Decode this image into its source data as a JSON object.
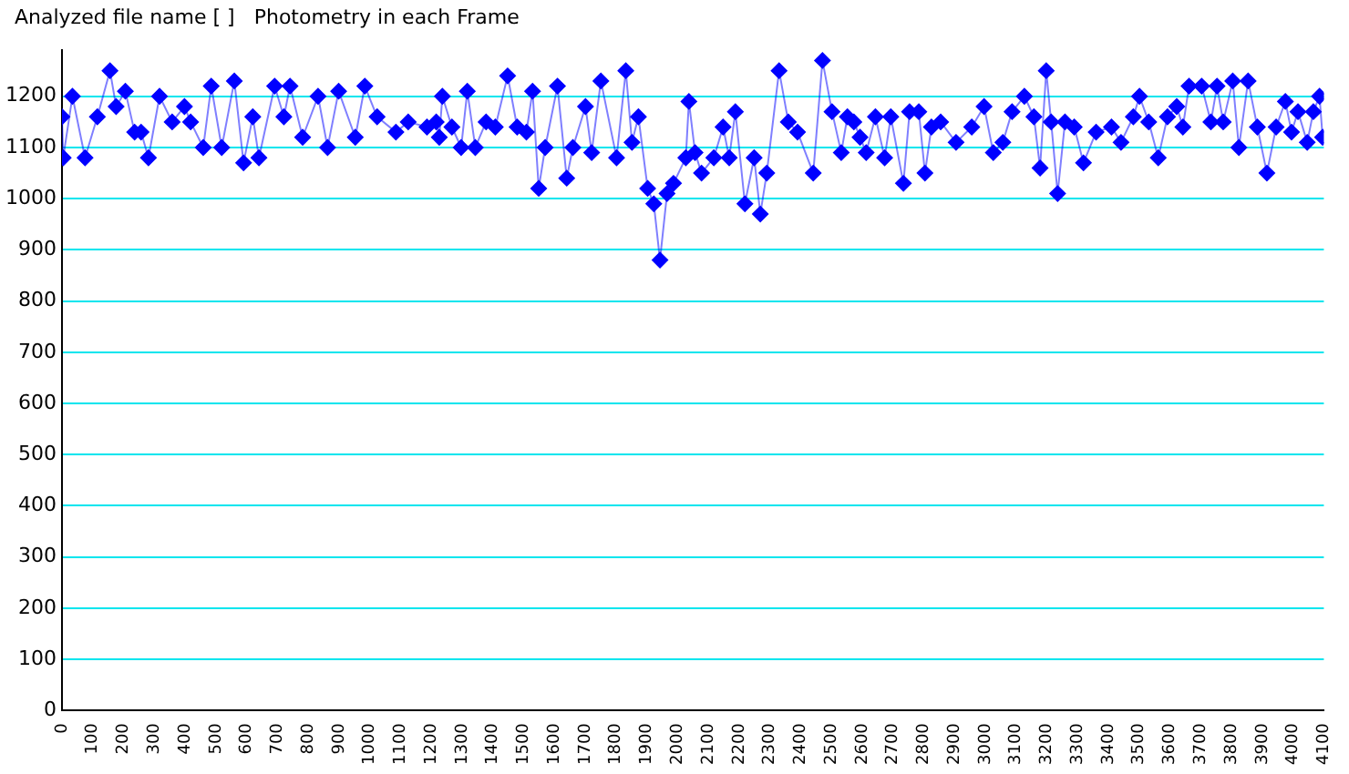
{
  "chart_data": {
    "type": "line",
    "title": "Analyzed file name [ ]   Photometry in each Frame",
    "xlim": [
      0,
      4100
    ],
    "xticks": [
      0,
      100,
      200,
      300,
      400,
      500,
      600,
      700,
      800,
      900,
      1000,
      1100,
      1200,
      1300,
      1400,
      1500,
      1600,
      1700,
      1800,
      1900,
      2000,
      2100,
      2200,
      2300,
      2400,
      2500,
      2600,
      2700,
      2800,
      2900,
      3000,
      3100,
      3200,
      3300,
      3400,
      3500,
      3600,
      3700,
      3800,
      3900,
      4000,
      4100
    ],
    "ylim": [
      0,
      1290
    ],
    "yticks": [
      0,
      100,
      200,
      300,
      400,
      500,
      600,
      700,
      800,
      900,
      1000,
      1100,
      1200
    ],
    "grid": "y",
    "legend": false,
    "marker": "diamond",
    "line_style": "solid",
    "series": [
      {
        "color": "#0000ff",
        "x": [
          0,
          4,
          34,
          75,
          115,
          156,
          176,
          206,
          236,
          257,
          281,
          317,
          358,
          398,
          418,
          459,
          485,
          519,
          560,
          590,
          620,
          640,
          691,
          721,
          741,
          782,
          832,
          863,
          899,
          953,
          984,
          1024,
          1085,
          1125,
          1186,
          1216,
          1226,
          1236,
          1267,
          1297,
          1317,
          1343,
          1378,
          1408,
          1448,
          1479,
          1509,
          1529,
          1549,
          1570,
          1610,
          1640,
          1660,
          1701,
          1721,
          1751,
          1802,
          1832,
          1852,
          1873,
          1903,
          1923,
          1943,
          1966,
          1987,
          2027,
          2037,
          2057,
          2078,
          2118,
          2148,
          2168,
          2188,
          2219,
          2249,
          2269,
          2290,
          2330,
          2360,
          2390,
          2441,
          2471,
          2502,
          2532,
          2552,
          2573,
          2593,
          2613,
          2643,
          2673,
          2693,
          2734,
          2754,
          2784,
          2804,
          2825,
          2855,
          2905,
          2956,
          2996,
          3026,
          3057,
          3087,
          3127,
          3158,
          3178,
          3198,
          3214,
          3235,
          3259,
          3289,
          3319,
          3360,
          3410,
          3441,
          3481,
          3501,
          3531,
          3562,
          3592,
          3622,
          3642,
          3662,
          3703,
          3733,
          3753,
          3773,
          3804,
          3824,
          3854,
          3884,
          3915,
          3945,
          3975,
          3995,
          4016,
          4046,
          4066,
          4086,
          4096
        ],
        "values": [
          1160,
          1080,
          1200,
          1080,
          1160,
          1250,
          1180,
          1210,
          1130,
          1130,
          1080,
          1200,
          1150,
          1180,
          1150,
          1100,
          1220,
          1100,
          1230,
          1070,
          1160,
          1080,
          1220,
          1160,
          1220,
          1120,
          1200,
          1100,
          1210,
          1120,
          1220,
          1160,
          1130,
          1150,
          1140,
          1150,
          1120,
          1200,
          1140,
          1100,
          1210,
          1100,
          1150,
          1140,
          1240,
          1140,
          1130,
          1210,
          1020,
          1100,
          1220,
          1040,
          1100,
          1180,
          1090,
          1230,
          1080,
          1250,
          1110,
          1160,
          1020,
          990,
          880,
          1010,
          1030,
          1080,
          1190,
          1090,
          1050,
          1080,
          1140,
          1080,
          1170,
          990,
          1080,
          970,
          1050,
          1250,
          1150,
          1130,
          1050,
          1270,
          1170,
          1090,
          1160,
          1150,
          1120,
          1090,
          1160,
          1080,
          1160,
          1030,
          1170,
          1170,
          1050,
          1140,
          1150,
          1110,
          1140,
          1180,
          1090,
          1110,
          1170,
          1200,
          1160,
          1060,
          1250,
          1150,
          1010,
          1150,
          1140,
          1070,
          1130,
          1140,
          1110,
          1160,
          1200,
          1150,
          1080,
          1160,
          1180,
          1140,
          1220,
          1220,
          1150,
          1220,
          1150,
          1230,
          1100,
          1230,
          1140,
          1050,
          1140,
          1190,
          1130,
          1170,
          1110,
          1170,
          1200,
          1120
        ]
      }
    ]
  }
}
